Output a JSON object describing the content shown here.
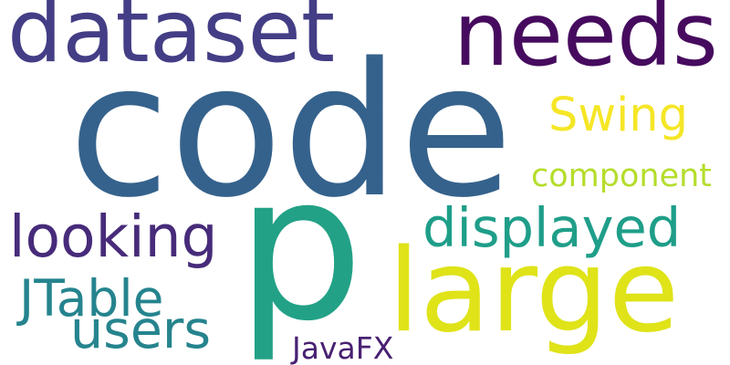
{
  "words": [
    {
      "text": "code",
      "color": "#35628c"
    },
    {
      "text": "dataset",
      "color": "#433e85"
    },
    {
      "text": "needs",
      "color": "#460b5e"
    },
    {
      "text": "Swing",
      "color": "#f5e626"
    },
    {
      "text": "component",
      "color": "#b5dd2b"
    },
    {
      "text": "looking",
      "color": "#472b7a"
    },
    {
      "text": "p",
      "color": "#22a186"
    },
    {
      "text": "displayed",
      "color": "#1f9e89"
    },
    {
      "text": "large",
      "color": "#dfe318"
    },
    {
      "text": "JTable",
      "color": "#25848e"
    },
    {
      "text": "users",
      "color": "#26848e"
    },
    {
      "text": "JavaFX",
      "color": "#482172"
    }
  ]
}
